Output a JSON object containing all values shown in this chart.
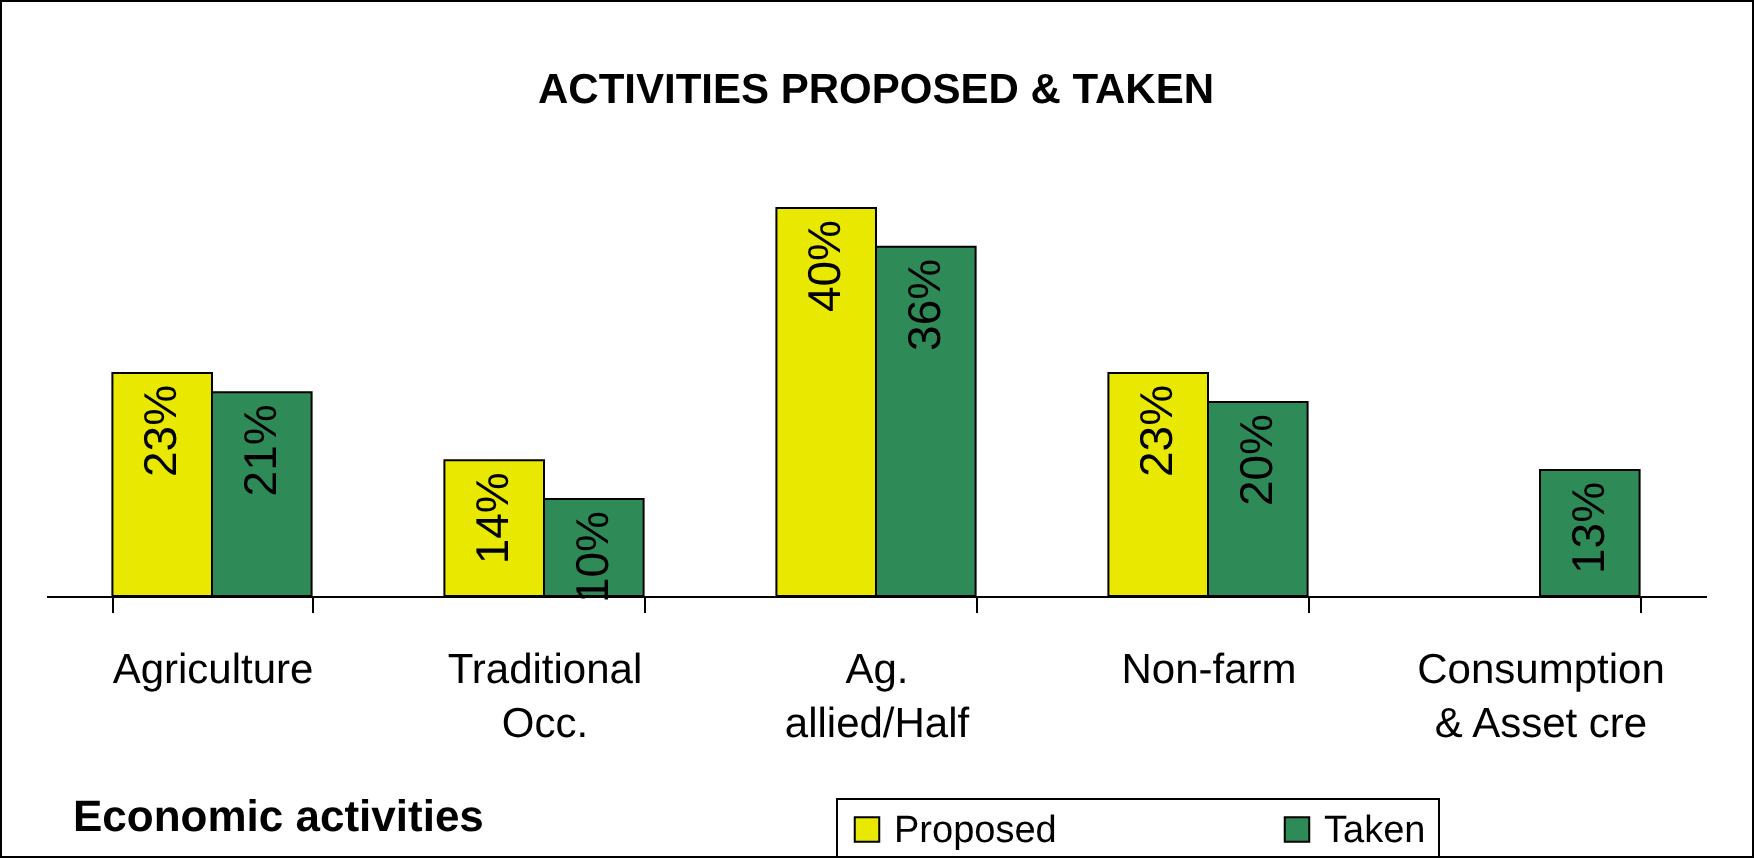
{
  "chart_data": {
    "type": "bar",
    "title": "ACTIVITIES PROPOSED & TAKEN",
    "xlabel": "Economic activities",
    "categories": [
      "Agriculture",
      "Traditional\nOcc.",
      "Ag.\nallied/Half",
      "Non-farm",
      "Consumption\n& Asset cre"
    ],
    "series": [
      {
        "name": "Proposed",
        "color": "#e8e800",
        "values": [
          23,
          14,
          40,
          23,
          null
        ],
        "value_labels": [
          "23%",
          "14%",
          "40%",
          "23%",
          null
        ]
      },
      {
        "name": "Taken",
        "color": "#2e8b57",
        "values": [
          21,
          10,
          36,
          20,
          13
        ],
        "value_labels": [
          "21%",
          "10%",
          "36%",
          "20%",
          "13%"
        ]
      }
    ],
    "legend": "bottom"
  }
}
